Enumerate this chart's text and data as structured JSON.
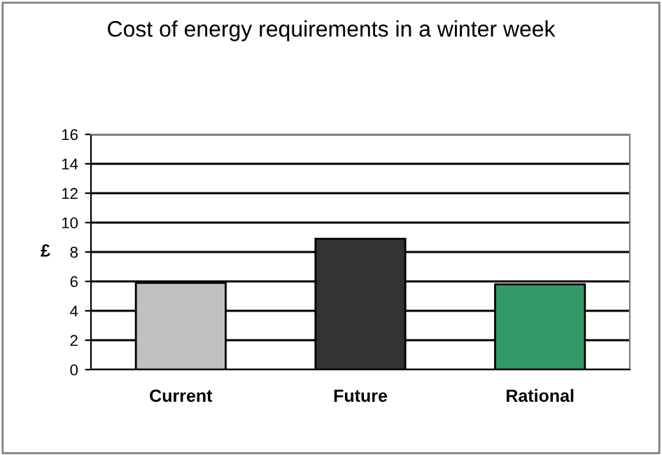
{
  "chart_data": {
    "type": "bar",
    "title": "Cost of energy requirements in a winter week",
    "ylabel": "£",
    "categories": [
      "Current",
      "Future",
      "Rational"
    ],
    "values": [
      5.9,
      8.9,
      5.8
    ],
    "colors": [
      "#c0c0c0",
      "#333333",
      "#339966"
    ],
    "ylim": [
      0,
      16
    ],
    "yticks": [
      0,
      2,
      4,
      6,
      8,
      10,
      12,
      14,
      16
    ],
    "grid": "y",
    "legend": false
  }
}
